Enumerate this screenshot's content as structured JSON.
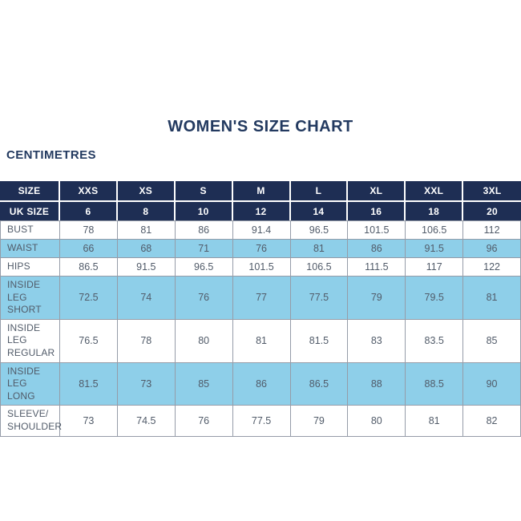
{
  "header": {
    "title": "WOMEN'S SIZE CHART",
    "units_label": "CENTIMETRES"
  },
  "colors": {
    "navy_header_bg": "#1e2e54",
    "title_text": "#233a60",
    "shaded_row_blue": "#8ecfe9",
    "cell_border_gray": "#959ca8",
    "cell_text": "#515b69"
  },
  "chart_data": {
    "type": "table",
    "title": "WOMEN'S SIZE CHART",
    "units_label": "CENTIMETRES",
    "header_rows": [
      {
        "name": "size-header-row",
        "cells": [
          "SIZE",
          "XXS",
          "XS",
          "S",
          "M",
          "L",
          "XL",
          "XXL",
          "3XL"
        ]
      },
      {
        "name": "uk-size-header-row",
        "cells": [
          "UK SIZE",
          "6",
          "8",
          "10",
          "12",
          "14",
          "16",
          "18",
          "20"
        ]
      }
    ],
    "body_rows": [
      {
        "label": "BUST",
        "shaded": false,
        "values": [
          "78",
          "81",
          "86",
          "91.4",
          "96.5",
          "101.5",
          "106.5",
          "112"
        ]
      },
      {
        "label": "WAIST",
        "shaded": true,
        "values": [
          "66",
          "68",
          "71",
          "76",
          "81",
          "86",
          "91.5",
          "96"
        ]
      },
      {
        "label": "HIPS",
        "shaded": false,
        "values": [
          "86.5",
          "91.5",
          "96.5",
          "101.5",
          "106.5",
          "111.5",
          "117",
          "122"
        ]
      },
      {
        "label": "INSIDE LEG SHORT",
        "shaded": true,
        "values": [
          "72.5",
          "74",
          "76",
          "77",
          "77.5",
          "79",
          "79.5",
          "81"
        ]
      },
      {
        "label": "INSIDE LEG REGULAR",
        "shaded": false,
        "values": [
          "76.5",
          "78",
          "80",
          "81",
          "81.5",
          "83",
          "83.5",
          "85"
        ]
      },
      {
        "label": "INSIDE LEG LONG",
        "shaded": true,
        "values": [
          "81.5",
          "73",
          "85",
          "86",
          "86.5",
          "88",
          "88.5",
          "90"
        ]
      },
      {
        "label": "SLEEVE/SHOULDER",
        "shaded": false,
        "values": [
          "73",
          "74.5",
          "76",
          "77.5",
          "79",
          "80",
          "81",
          "82"
        ]
      }
    ]
  }
}
